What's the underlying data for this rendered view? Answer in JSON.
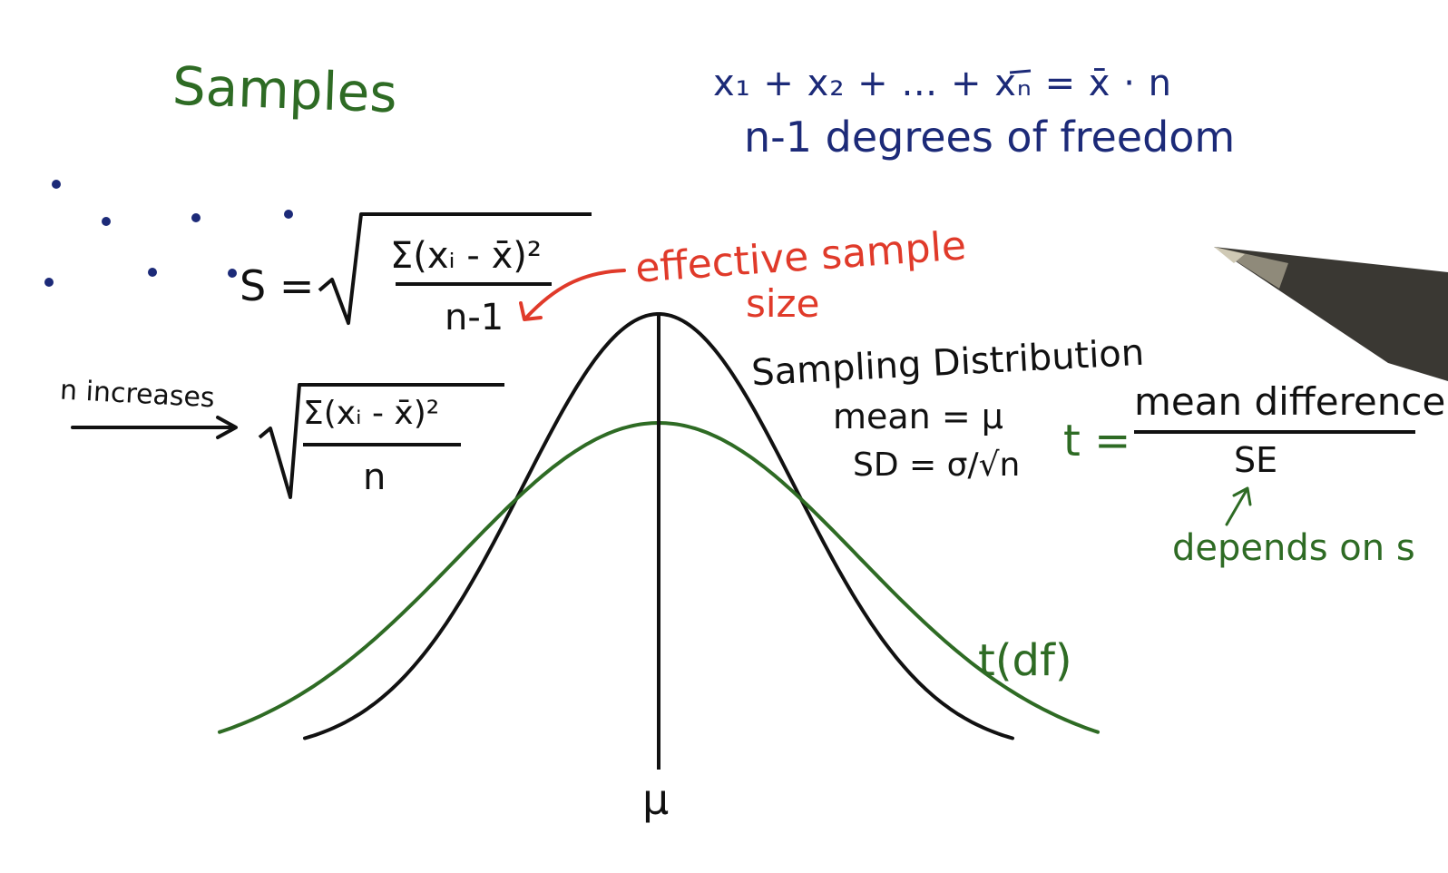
{
  "title": "Samples",
  "sum_equation": "x₁ + x₂ + … + xₙ = x̄ · n",
  "degrees_of_freedom": "n-1 degrees of freedom",
  "s_formula": {
    "lhs": "S =",
    "numerator": "Σ(xᵢ - x̄)²",
    "denominator": "n-1"
  },
  "effective": {
    "line1": "effective sample",
    "line2": "size"
  },
  "n_increases": "n increases",
  "pop_formula": {
    "numerator": "Σ(xᵢ - x̄)²",
    "denominator": "n"
  },
  "sampling_distribution": {
    "heading": "Sampling Distribution",
    "mean": "mean = μ",
    "sd": "SD = σ/√n"
  },
  "t_formula": {
    "lhs": "t =",
    "numerator": "mean difference",
    "denominator": "SE",
    "note": "depends on s"
  },
  "t_curve_label": "t(df)",
  "mu_label": "μ",
  "colors": {
    "green": "#2e6b24",
    "navy": "#1c2a78",
    "black": "#111111",
    "red": "#e03a2a"
  }
}
